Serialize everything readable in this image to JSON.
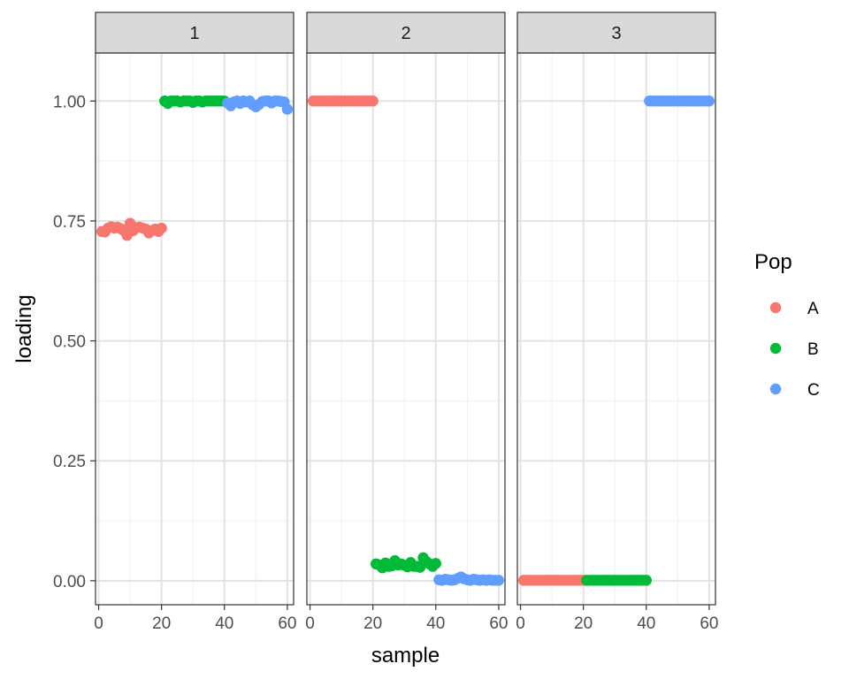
{
  "chart_data": {
    "type": "scatter",
    "facet_by": "component",
    "xlabel": "sample",
    "ylabel": "loading",
    "xlim": [
      -1,
      62
    ],
    "ylim": [
      -0.05,
      1.1
    ],
    "x_ticks": [
      0,
      20,
      40,
      60
    ],
    "y_ticks": [
      0.0,
      0.25,
      0.5,
      0.75,
      1.0
    ],
    "y_tick_labels": [
      "0.00",
      "0.25",
      "0.50",
      "0.75",
      "1.00"
    ],
    "grid": true,
    "theme": "bw",
    "legend": {
      "title": "Pop",
      "position": "right",
      "entries": [
        {
          "label": "A",
          "color": "#F8766D"
        },
        {
          "label": "B",
          "color": "#00BA38"
        },
        {
          "label": "C",
          "color": "#619CFF"
        }
      ]
    },
    "panels": [
      {
        "label": "1",
        "series": [
          {
            "name": "A",
            "color": "#F8766D",
            "x": [
              1,
              2,
              3,
              4,
              5,
              6,
              7,
              8,
              9,
              10,
              11,
              12,
              13,
              14,
              15,
              16,
              17,
              18,
              19,
              20
            ],
            "y": [
              0.728,
              0.727,
              0.735,
              0.738,
              0.735,
              0.737,
              0.734,
              0.73,
              0.72,
              0.745,
              0.73,
              0.736,
              0.737,
              0.735,
              0.733,
              0.725,
              0.73,
              0.733,
              0.728,
              0.735
            ]
          },
          {
            "name": "B",
            "color": "#00BA38",
            "x": [
              21,
              22,
              23,
              24,
              25,
              26,
              27,
              28,
              29,
              30,
              31,
              32,
              33,
              34,
              35,
              36,
              37,
              38,
              39,
              40
            ],
            "y": [
              1.0,
              0.995,
              1.0,
              1.0,
              1.0,
              0.998,
              1.0,
              1.0,
              1.0,
              0.997,
              1.0,
              1.0,
              0.998,
              1.0,
              1.0,
              1.0,
              1.0,
              1.0,
              1.0,
              1.0
            ]
          },
          {
            "name": "C",
            "color": "#619CFF",
            "x": [
              41,
              42,
              43,
              44,
              45,
              46,
              47,
              48,
              49,
              50,
              51,
              52,
              53,
              54,
              55,
              56,
              57,
              58,
              59,
              60
            ],
            "y": [
              0.996,
              0.99,
              0.998,
              1.0,
              0.995,
              1.0,
              0.998,
              1.0,
              0.992,
              0.988,
              0.993,
              0.999,
              1.0,
              1.0,
              0.996,
              1.0,
              1.0,
              0.999,
              0.998,
              0.983
            ]
          }
        ]
      },
      {
        "label": "2",
        "series": [
          {
            "name": "A",
            "color": "#F8766D",
            "x": [
              1,
              2,
              3,
              4,
              5,
              6,
              7,
              8,
              9,
              10,
              11,
              12,
              13,
              14,
              15,
              16,
              17,
              18,
              19,
              20
            ],
            "y": [
              1.0,
              1.0,
              1.0,
              1.0,
              1.0,
              1.0,
              1.0,
              1.0,
              1.0,
              1.0,
              1.0,
              1.0,
              1.0,
              1.0,
              1.0,
              1.0,
              1.0,
              1.0,
              1.0,
              1.0
            ]
          },
          {
            "name": "B",
            "color": "#00BA38",
            "x": [
              21,
              22,
              23,
              24,
              25,
              26,
              27,
              28,
              29,
              30,
              31,
              32,
              33,
              34,
              35,
              36,
              37,
              38,
              39,
              40
            ],
            "y": [
              0.035,
              0.033,
              0.027,
              0.037,
              0.03,
              0.031,
              0.042,
              0.033,
              0.035,
              0.032,
              0.029,
              0.038,
              0.03,
              0.03,
              0.028,
              0.048,
              0.04,
              0.035,
              0.03,
              0.036
            ]
          },
          {
            "name": "C",
            "color": "#619CFF",
            "x": [
              41,
              42,
              43,
              44,
              45,
              46,
              47,
              48,
              49,
              50,
              51,
              52,
              53,
              54,
              55,
              56,
              57,
              58,
              59,
              60
            ],
            "y": [
              0.002,
              0.001,
              0.003,
              0.002,
              0.001,
              0.002,
              0.005,
              0.008,
              0.004,
              0.002,
              0.001,
              0.003,
              0.002,
              0.001,
              0.002,
              0.001,
              0.002,
              0.001,
              0.001,
              0.001
            ]
          }
        ]
      },
      {
        "label": "3",
        "series": [
          {
            "name": "A",
            "color": "#F8766D",
            "x": [
              1,
              2,
              3,
              4,
              5,
              6,
              7,
              8,
              9,
              10,
              11,
              12,
              13,
              14,
              15,
              16,
              17,
              18,
              19,
              20
            ],
            "y": [
              0.001,
              0.001,
              0.001,
              0.001,
              0.001,
              0.001,
              0.001,
              0.001,
              0.001,
              0.001,
              0.001,
              0.001,
              0.001,
              0.001,
              0.001,
              0.001,
              0.001,
              0.001,
              0.001,
              0.001
            ]
          },
          {
            "name": "B",
            "color": "#00BA38",
            "x": [
              21,
              22,
              23,
              24,
              25,
              26,
              27,
              28,
              29,
              30,
              31,
              32,
              33,
              34,
              35,
              36,
              37,
              38,
              39,
              40
            ],
            "y": [
              0.001,
              0.001,
              0.001,
              0.001,
              0.001,
              0.001,
              0.001,
              0.001,
              0.001,
              0.001,
              0.001,
              0.001,
              0.001,
              0.001,
              0.001,
              0.001,
              0.001,
              0.001,
              0.001,
              0.001
            ]
          },
          {
            "name": "C",
            "color": "#619CFF",
            "x": [
              41,
              42,
              43,
              44,
              45,
              46,
              47,
              48,
              49,
              50,
              51,
              52,
              53,
              54,
              55,
              56,
              57,
              58,
              59,
              60
            ],
            "y": [
              1.0,
              1.0,
              1.0,
              1.0,
              1.0,
              1.0,
              1.0,
              1.0,
              1.0,
              1.0,
              1.0,
              1.0,
              1.0,
              1.0,
              1.0,
              1.0,
              1.0,
              1.0,
              1.0,
              1.0
            ]
          }
        ]
      }
    ]
  }
}
